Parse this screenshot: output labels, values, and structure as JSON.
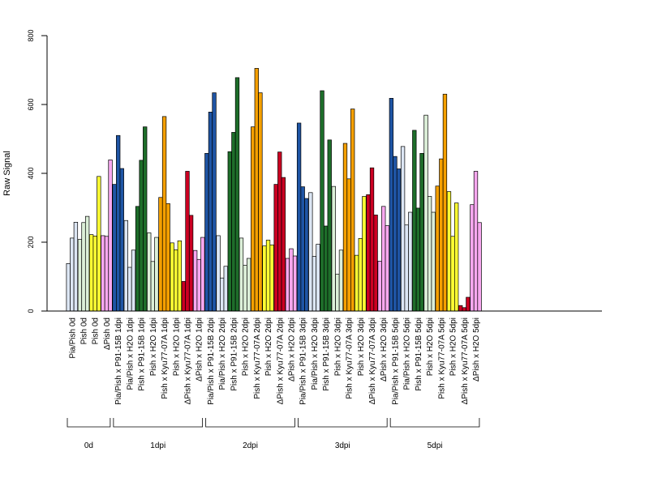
{
  "chart_data": {
    "type": "bar",
    "ylabel": "Raw Signal",
    "ylim": [
      0,
      800
    ],
    "yticks": [
      0,
      200,
      400,
      600,
      800
    ],
    "grid": false,
    "legend": "none",
    "categories": [
      "Pia/Pish 0d",
      "Pish 0d",
      "Pish 0d",
      "ΔPish 0d",
      "Pia/Pish x P91-15B 1dpi",
      "Pia/Pish x H2O 1dpi",
      "Pish x P91-15B 1dpi",
      "Pish x H2O 1dpi",
      "Pish x Kyu77-07A 1dpi",
      "Pish x H2O 1dpi",
      "ΔPish x Kyu77-07A 1dpi",
      "ΔPish x H2O 1dpi",
      "Pia/Pish x P91-15B 2dpi",
      "Pia/Pish x H2O 2dpi",
      "Pish x P91-15B 2dpi",
      "Pish x H2O 2dpi",
      "Pish x Kyu77-07A 2dpi",
      "Pish x H2O 2dpi",
      "ΔPish x Kyu77-07A 2dpi",
      "ΔPish x H2O 2dpi",
      "Pia/Pish x P91-15B 3dpi",
      "Pia/Pish x H2O 3dpi",
      "Pish x P91-15B 3dpi",
      "Pish x H2O 3dpi",
      "Pish x Kyu77-07A 3dpi",
      "Pish x H2O 3dpi",
      "ΔPish x Kyu77-07A 3dpi",
      "ΔPish x H2O 3dpi",
      "Pia/Pish x P91-15B 5dpi",
      "Pia/Pish x H2O 5dpi",
      "Pish x P91-15B 5dpi",
      "Pish x H2O 5dpi",
      "Pish x Kyu77-07A 5dpi",
      "Pish x H2O 5dpi",
      "ΔPish x Kyu77-07A 5dpi",
      "ΔPish x H2O 5dpi"
    ],
    "colors": [
      "#dce6f4",
      "#dcefd8",
      "#ffff33",
      "#f8a8f0",
      "#1f55a5",
      "#dce6f4",
      "#1e6e2a",
      "#dcefd8",
      "#f5a000",
      "#ffff33",
      "#cc0022",
      "#f8a8f0",
      "#1f55a5",
      "#dce6f4",
      "#1e6e2a",
      "#dcefd8",
      "#f5a000",
      "#ffff33",
      "#cc0022",
      "#f8a8f0",
      "#1f55a5",
      "#dce6f4",
      "#1e6e2a",
      "#dcefd8",
      "#f5a000",
      "#ffff33",
      "#cc0022",
      "#f8a8f0",
      "#1f55a5",
      "#dce6f4",
      "#1e6e2a",
      "#dcefd8",
      "#f5a000",
      "#ffff33",
      "#cc0022",
      "#f8a8f0"
    ],
    "values": [
      [
        138,
        212,
        258
      ],
      [
        208,
        257,
        275
      ],
      [
        222,
        218,
        391
      ],
      [
        219,
        217,
        439
      ],
      [
        368,
        510,
        414
      ],
      [
        263,
        127,
        177
      ],
      [
        304,
        438,
        535
      ],
      [
        227,
        144,
        214
      ],
      [
        330,
        565,
        312
      ],
      [
        198,
        178,
        204
      ],
      [
        86,
        406,
        278
      ],
      [
        176,
        150,
        214
      ],
      [
        458,
        578,
        634
      ],
      [
        219,
        96,
        130
      ],
      [
        463,
        519,
        678
      ],
      [
        212,
        133,
        153
      ],
      [
        535,
        705,
        634
      ],
      [
        189,
        206,
        192
      ],
      [
        368,
        462,
        388
      ],
      [
        153,
        181,
        160
      ],
      [
        546,
        361,
        327
      ],
      [
        344,
        159,
        194
      ],
      [
        640,
        247,
        497
      ],
      [
        362,
        107,
        177
      ],
      [
        487,
        384,
        587
      ],
      [
        162,
        211,
        333
      ],
      [
        338,
        416,
        279
      ],
      [
        145,
        304,
        248
      ],
      [
        618,
        449,
        413
      ],
      [
        478,
        250,
        287
      ],
      [
        525,
        299,
        458
      ],
      [
        569,
        333,
        287
      ],
      [
        363,
        442,
        630
      ],
      [
        347,
        217,
        314
      ],
      [
        16,
        10,
        40
      ],
      [
        309,
        406,
        257
      ]
    ],
    "groups": [
      {
        "label": "0d",
        "start": 0,
        "end": 3
      },
      {
        "label": "1dpi",
        "start": 4,
        "end": 11
      },
      {
        "label": "2dpi",
        "start": 12,
        "end": 19
      },
      {
        "label": "3dpi",
        "start": 20,
        "end": 27
      },
      {
        "label": "5dpi",
        "start": 28,
        "end": 35
      }
    ]
  }
}
